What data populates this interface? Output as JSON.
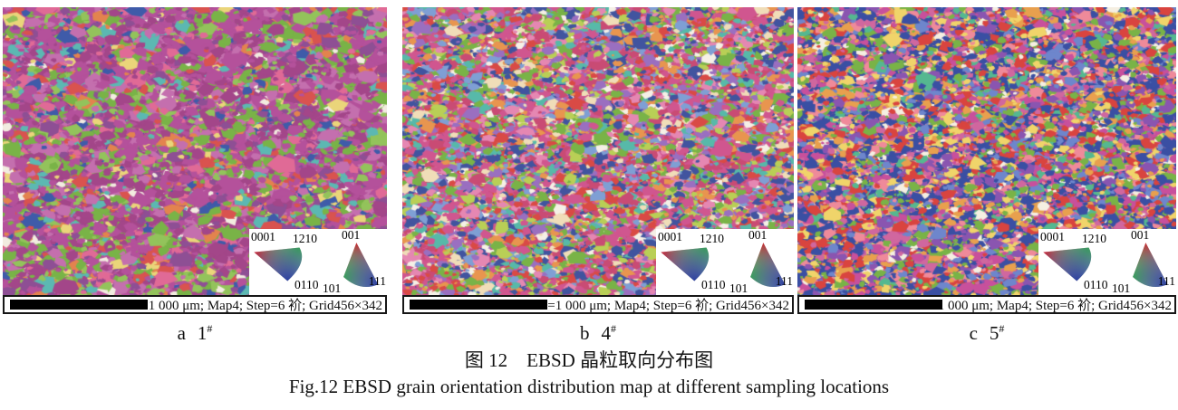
{
  "figure": {
    "caption_zh": "图 12　EBSD 晶粒取向分布图",
    "caption_en": "Fig.12 EBSD grain orientation distribution map at different sampling locations"
  },
  "ipf": {
    "hex_labels": [
      "0001",
      "1210",
      "0110"
    ],
    "cubic_labels": [
      "001",
      "101",
      "111"
    ],
    "corner_colors": {
      "red": "#d8102d",
      "green": "#3cb44a",
      "blue": "#2b3f9e"
    }
  },
  "panels": [
    {
      "label_letter": "a",
      "label_sample": "1",
      "label_sup": "#",
      "scalebar_text": "=1 000 μm; Map4; Step=6 衸; Grid456×342",
      "texture": {
        "seed": 11,
        "grain_scale": 1.25,
        "palette": [
          [
            "#b4519b",
            5
          ],
          [
            "#a34689",
            3
          ],
          [
            "#c46fae",
            2
          ],
          [
            "#8e4f94",
            1.5
          ],
          [
            "#79b347",
            2.6
          ],
          [
            "#93c35b",
            1.4
          ],
          [
            "#5cb8b2",
            0.8
          ],
          [
            "#d9534f",
            0.7
          ],
          [
            "#e3834e",
            0.6
          ],
          [
            "#3f5ba9",
            0.7
          ],
          [
            "#ead57a",
            0.5
          ],
          [
            "#f2ece0",
            0.4
          ],
          [
            "#e06a96",
            0.8
          ]
        ]
      }
    },
    {
      "label_letter": "b",
      "label_sample": "4",
      "label_sup": "#",
      "scalebar_text": "=1 000 μm; Map4; Step=6 衸; Grid456×342",
      "texture": {
        "seed": 22,
        "grain_scale": 1.0,
        "palette": [
          [
            "#d0568f",
            2.4
          ],
          [
            "#c94b74",
            1.6
          ],
          [
            "#41549f",
            2.2
          ],
          [
            "#7f9fd4",
            1.2
          ],
          [
            "#79b347",
            2.2
          ],
          [
            "#b9cf56",
            1.2
          ],
          [
            "#e8954f",
            1.4
          ],
          [
            "#d94a45",
            1.4
          ],
          [
            "#9a6fc0",
            1.4
          ],
          [
            "#f0ddb8",
            1.0
          ],
          [
            "#57b9a9",
            0.9
          ],
          [
            "#f5f0e6",
            0.6
          ],
          [
            "#e587b2",
            1.2
          ]
        ]
      }
    },
    {
      "label_letter": "c",
      "label_sample": "5",
      "label_sup": "#",
      "scalebar_text": "=1 000 μm; Map4; Step=6 衸; Grid456×342",
      "texture": {
        "seed": 33,
        "grain_scale": 1.0,
        "palette": [
          [
            "#3a4fa3",
            2.6
          ],
          [
            "#6e86cc",
            1.2
          ],
          [
            "#d9443f",
            2.2
          ],
          [
            "#c8509c",
            1.8
          ],
          [
            "#79b347",
            1.8
          ],
          [
            "#e8a04e",
            1.4
          ],
          [
            "#f0d46a",
            1.4
          ],
          [
            "#8a55b0",
            1.4
          ],
          [
            "#ef8a9a",
            1.0
          ],
          [
            "#55b890",
            0.9
          ],
          [
            "#f5efe2",
            0.6
          ],
          [
            "#d0679f",
            1.2
          ]
        ]
      }
    }
  ]
}
